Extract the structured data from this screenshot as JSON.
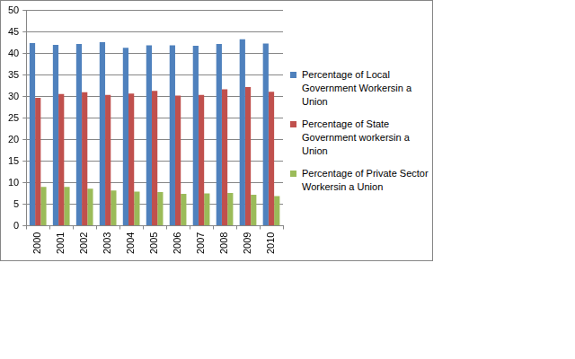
{
  "chart_data": {
    "type": "bar",
    "categories": [
      "2000",
      "2001",
      "2002",
      "2003",
      "2004",
      "2005",
      "2006",
      "2007",
      "2008",
      "2009",
      "2010"
    ],
    "series": [
      {
        "name": "Percentage of Local Government Workersin a Union",
        "color": "#4f81bd",
        "values": [
          42.4,
          42.0,
          42.2,
          42.6,
          41.3,
          41.9,
          41.9,
          41.8,
          42.2,
          43.3,
          42.3
        ]
      },
      {
        "name": "Percentage of State Government workersin a Union",
        "color": "#c0504d",
        "values": [
          29.7,
          30.6,
          31.0,
          30.4,
          30.7,
          31.3,
          30.2,
          30.4,
          31.7,
          32.2,
          31.1
        ]
      },
      {
        "name": "Percentage of Private Sector Workersin a Union",
        "color": "#9bbb59",
        "values": [
          9.0,
          9.0,
          8.6,
          8.2,
          7.9,
          7.8,
          7.4,
          7.5,
          7.6,
          7.2,
          6.9
        ]
      }
    ],
    "ylim": [
      0,
      50
    ],
    "yticks": [
      0,
      5,
      10,
      15,
      20,
      25,
      30,
      35,
      40,
      45,
      50
    ],
    "grid": true,
    "legend": "right"
  }
}
